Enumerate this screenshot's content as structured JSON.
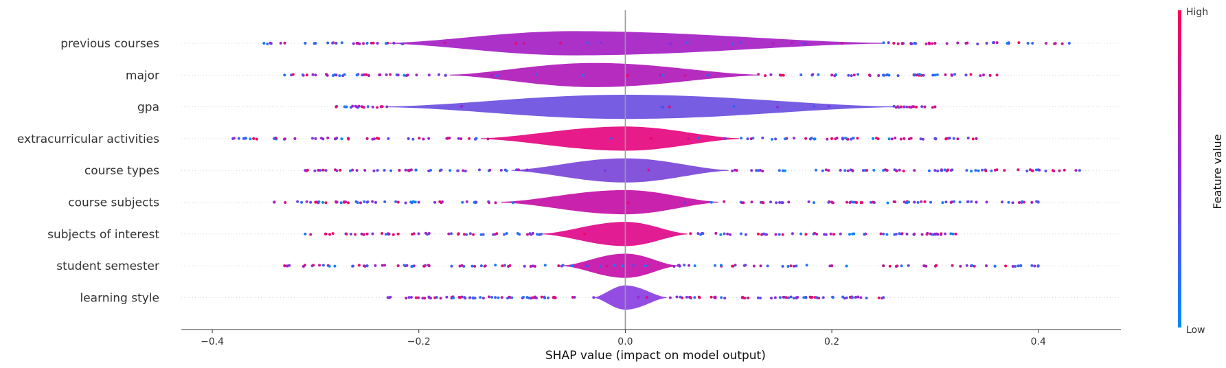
{
  "chart_data": {
    "type": "scatter",
    "subtype": "shap-violin-summary",
    "xlabel": "SHAP value (impact on model output)",
    "xlim": [
      -0.43,
      0.48
    ],
    "xticks": [
      -0.4,
      -0.2,
      0.0,
      0.2,
      0.4
    ],
    "xtick_labels": [
      "−0.4",
      "−0.2",
      "0.0",
      "0.2",
      "0.4"
    ],
    "grid": false,
    "zero_line": true,
    "colorbar": {
      "title": "Feature value",
      "high_label": "High",
      "low_label": "Low",
      "high_color": "#ff0052",
      "mid_color": "#8a2be2",
      "low_color": "#008bfb"
    },
    "features": [
      {
        "name": "previous courses",
        "min": -0.35,
        "max": 0.43,
        "body": [
          -0.23,
          0.25
        ],
        "peak": -0.05,
        "violin_color": "#a51fc4",
        "outliers": [
          -0.35,
          -0.31,
          -0.3,
          -0.28,
          -0.26,
          -0.25,
          -0.24,
          0.26,
          0.28,
          0.3,
          0.33,
          0.35,
          0.37,
          0.39,
          0.43
        ]
      },
      {
        "name": "major",
        "min": -0.33,
        "max": 0.36,
        "body": [
          -0.17,
          0.13
        ],
        "peak": -0.03,
        "violin_color": "#b01ab8",
        "outliers": [
          -0.33,
          -0.3,
          -0.28,
          -0.26,
          -0.22,
          -0.19,
          0.15,
          0.2,
          0.25,
          0.3,
          0.33,
          0.36
        ]
      },
      {
        "name": "gpa",
        "min": -0.28,
        "max": 0.3,
        "body": [
          -0.23,
          0.26
        ],
        "peak": 0.0,
        "violin_color": "#6a4fe0",
        "outliers": [
          -0.28,
          -0.27,
          -0.26,
          0.27,
          0.29,
          0.3
        ]
      },
      {
        "name": "extracurricular activities",
        "min": -0.38,
        "max": 0.34,
        "body": [
          -0.14,
          0.11
        ],
        "peak": 0.0,
        "violin_color": "#e5087f",
        "outliers": [
          -0.38,
          -0.36,
          -0.34,
          -0.32,
          -0.3,
          -0.28,
          -0.25,
          -0.21,
          0.2,
          0.24,
          0.27,
          0.3,
          0.34
        ]
      },
      {
        "name": "course types",
        "min": -0.31,
        "max": 0.44,
        "body": [
          -0.11,
          0.1
        ],
        "peak": 0.0,
        "violin_color": "#7a46d8",
        "outliers": [
          -0.31,
          -0.29,
          -0.26,
          -0.24,
          -0.21,
          0.22,
          0.25,
          0.28,
          0.3,
          0.44
        ]
      },
      {
        "name": "course subjects",
        "min": -0.34,
        "max": 0.4,
        "body": [
          -0.12,
          0.09
        ],
        "peak": 0.0,
        "violin_color": "#c40fa5",
        "outliers": [
          -0.34,
          -0.3,
          -0.28,
          -0.25,
          -0.22,
          0.2,
          0.24,
          0.28,
          0.34,
          0.4
        ]
      },
      {
        "name": "subjects of interest",
        "min": -0.31,
        "max": 0.32,
        "body": [
          -0.08,
          0.06
        ],
        "peak": 0.0,
        "violin_color": "#e0098a",
        "outliers": [
          -0.31,
          -0.29,
          -0.27,
          -0.25,
          -0.22,
          0.22,
          0.25,
          0.28,
          0.3,
          0.32
        ]
      },
      {
        "name": "student semester",
        "min": -0.33,
        "max": 0.4,
        "body": [
          -0.06,
          0.05
        ],
        "peak": 0.0,
        "violin_color": "#c410a8",
        "outliers": [
          -0.33,
          -0.25,
          -0.22,
          -0.19,
          0.2,
          0.25,
          0.4
        ]
      },
      {
        "name": "learning style",
        "min": -0.23,
        "max": 0.25,
        "body": [
          -0.03,
          0.04
        ],
        "peak": 0.0,
        "violin_color": "#8a3ee0",
        "outliers": [
          -0.23,
          -0.19,
          -0.16,
          0.15,
          0.18,
          0.22,
          0.25
        ]
      }
    ]
  }
}
